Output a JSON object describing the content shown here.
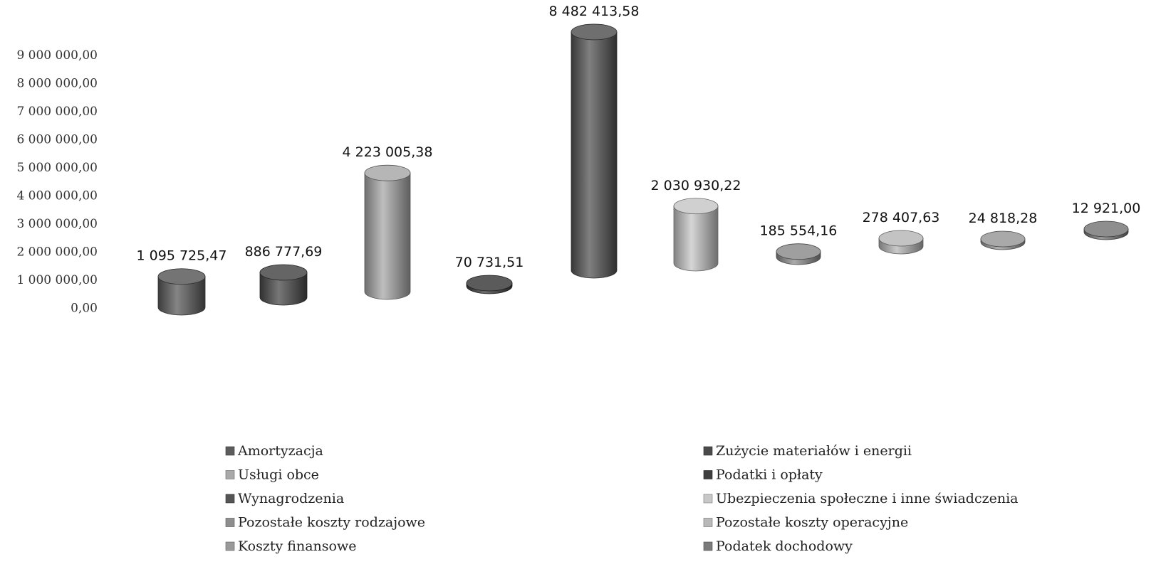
{
  "chart_data": {
    "type": "bar",
    "style": "3d-cylinder",
    "categories": [
      "Amortyzacja",
      "Zużycie materiałów i energii",
      "Usługi obce",
      "Podatki i opłaty",
      "Wynagrodzenia",
      "Ubezpieczenia społeczne i inne świadczenia",
      "Pozostałe koszty rodzajowe",
      "Pozostałe koszty operacyjne",
      "Koszty finansowe",
      "Podatek dochodowy"
    ],
    "values": [
      1095725.47,
      886777.69,
      4223005.38,
      70731.51,
      8482413.58,
      2030930.22,
      185554.16,
      278407.63,
      24818.28,
      12921.0
    ],
    "data_labels": [
      "1 095 725,47",
      "886 777,69",
      "4 223 005,38",
      "70 731,51",
      "8 482 413,58",
      "2 030 930,22",
      "185 554,16",
      "278 407,63",
      "24 818,28",
      "12 921,00"
    ],
    "yticks": [
      "0,00",
      "1 000 000,00",
      "2 000 000,00",
      "3 000 000,00",
      "4 000 000,00",
      "5 000 000,00",
      "6 000 000,00",
      "7 000 000,00",
      "8 000 000,00",
      "9 000 000,00"
    ],
    "ylim": [
      0,
      9000000
    ],
    "grid": false,
    "legend_position": "bottom",
    "legend": [
      "Amortyzacja",
      "Zużycie materiałów i energii",
      "Usługi obce",
      "Podatki i opłaty",
      "Wynagrodzenia",
      "Ubezpieczenia społeczne i inne świadczenia",
      "Pozostałe koszty rodzajowe",
      "Pozostałe koszty operacyjne",
      "Koszty finansowe",
      "Podatek dochodowy"
    ],
    "colors": [
      "#5c5c5c",
      "#4a4a4a",
      "#a9a9a9",
      "#3e3e3e",
      "#555555",
      "#c8c8c8",
      "#8e8e8e",
      "#b8b8b8",
      "#9a9a9a",
      "#7a7a7a"
    ]
  }
}
